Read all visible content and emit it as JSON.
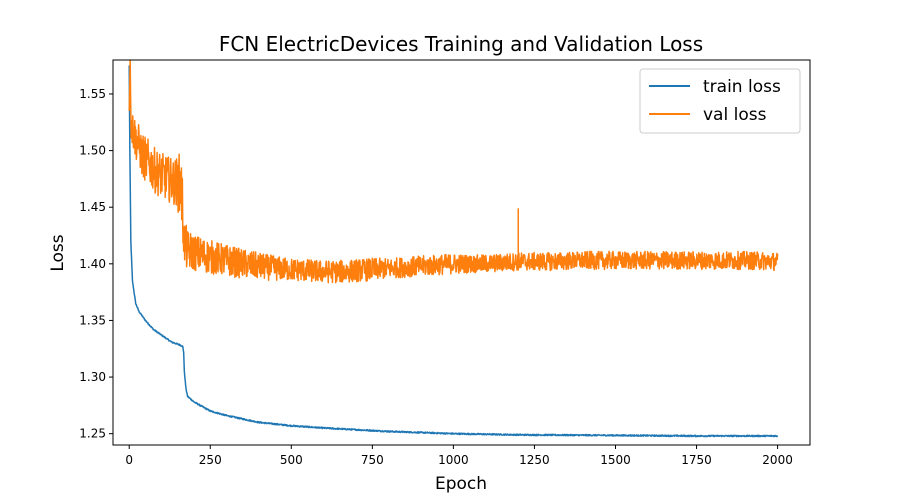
{
  "chart_data": {
    "type": "line",
    "title": "FCN ElectricDevices Training and Validation Loss",
    "xlabel": "Epoch",
    "ylabel": "Loss",
    "xlim": [
      -50,
      2100
    ],
    "ylim": [
      1.24,
      1.58
    ],
    "xticks": [
      0,
      250,
      500,
      750,
      1000,
      1250,
      1500,
      1750,
      2000
    ],
    "yticks": [
      1.25,
      1.3,
      1.35,
      1.4,
      1.45,
      1.5,
      1.55
    ],
    "ytick_labels": [
      "1.25",
      "1.30",
      "1.35",
      "1.40",
      "1.45",
      "1.50",
      "1.55"
    ],
    "legend_position": "top-right",
    "grid": false,
    "series": [
      {
        "name": "train loss",
        "color": "#1f77b4",
        "x": [
          0,
          2,
          5,
          10,
          20,
          30,
          50,
          75,
          100,
          130,
          160,
          165,
          168,
          170,
          175,
          180,
          200,
          250,
          300,
          400,
          500,
          600,
          800,
          1000,
          1200,
          1500,
          1750,
          2000
        ],
        "y": [
          1.575,
          1.5,
          1.42,
          1.385,
          1.365,
          1.358,
          1.35,
          1.342,
          1.337,
          1.331,
          1.328,
          1.327,
          1.322,
          1.305,
          1.29,
          1.283,
          1.278,
          1.27,
          1.266,
          1.26,
          1.257,
          1.255,
          1.252,
          1.25,
          1.249,
          1.2485,
          1.248,
          1.248
        ]
      },
      {
        "name": "val loss",
        "color": "#ff7f0e",
        "x": [
          0,
          3,
          6,
          10,
          20,
          30,
          40,
          60,
          80,
          100,
          120,
          140,
          160,
          165,
          170,
          175,
          180,
          200,
          250,
          300,
          350,
          400,
          450,
          500,
          550,
          600,
          650,
          700,
          750,
          800,
          850,
          900,
          950,
          1000,
          1050,
          1100,
          1150,
          1200,
          1250,
          1300,
          1400,
          1500,
          1600,
          1700,
          1800,
          1900,
          2000
        ],
        "y": [
          1.535,
          1.578,
          1.525,
          1.52,
          1.51,
          1.505,
          1.495,
          1.49,
          1.482,
          1.478,
          1.475,
          1.472,
          1.47,
          1.445,
          1.42,
          1.415,
          1.412,
          1.41,
          1.406,
          1.403,
          1.4,
          1.398,
          1.396,
          1.395,
          1.394,
          1.393,
          1.393,
          1.394,
          1.395,
          1.396,
          1.397,
          1.398,
          1.399,
          1.4,
          1.4,
          1.4,
          1.401,
          1.402,
          1.402,
          1.402,
          1.403,
          1.403,
          1.403,
          1.403,
          1.403,
          1.403,
          1.402
        ],
        "noise_amplitude": [
          0.0,
          0.003,
          0.018,
          0.018,
          0.018,
          0.018,
          0.02,
          0.02,
          0.02,
          0.02,
          0.02,
          0.02,
          0.03,
          0.03,
          0.02,
          0.02,
          0.018,
          0.016,
          0.015,
          0.014,
          0.013,
          0.012,
          0.011,
          0.01,
          0.01,
          0.01,
          0.01,
          0.01,
          0.01,
          0.009,
          0.009,
          0.009,
          0.009,
          0.009,
          0.008,
          0.008,
          0.008,
          0.008,
          0.008,
          0.008,
          0.008,
          0.008,
          0.008,
          0.008,
          0.008,
          0.008,
          0.008
        ]
      }
    ],
    "annotations": [
      {
        "series": "val loss",
        "x": 1200,
        "y": 1.449
      }
    ]
  }
}
